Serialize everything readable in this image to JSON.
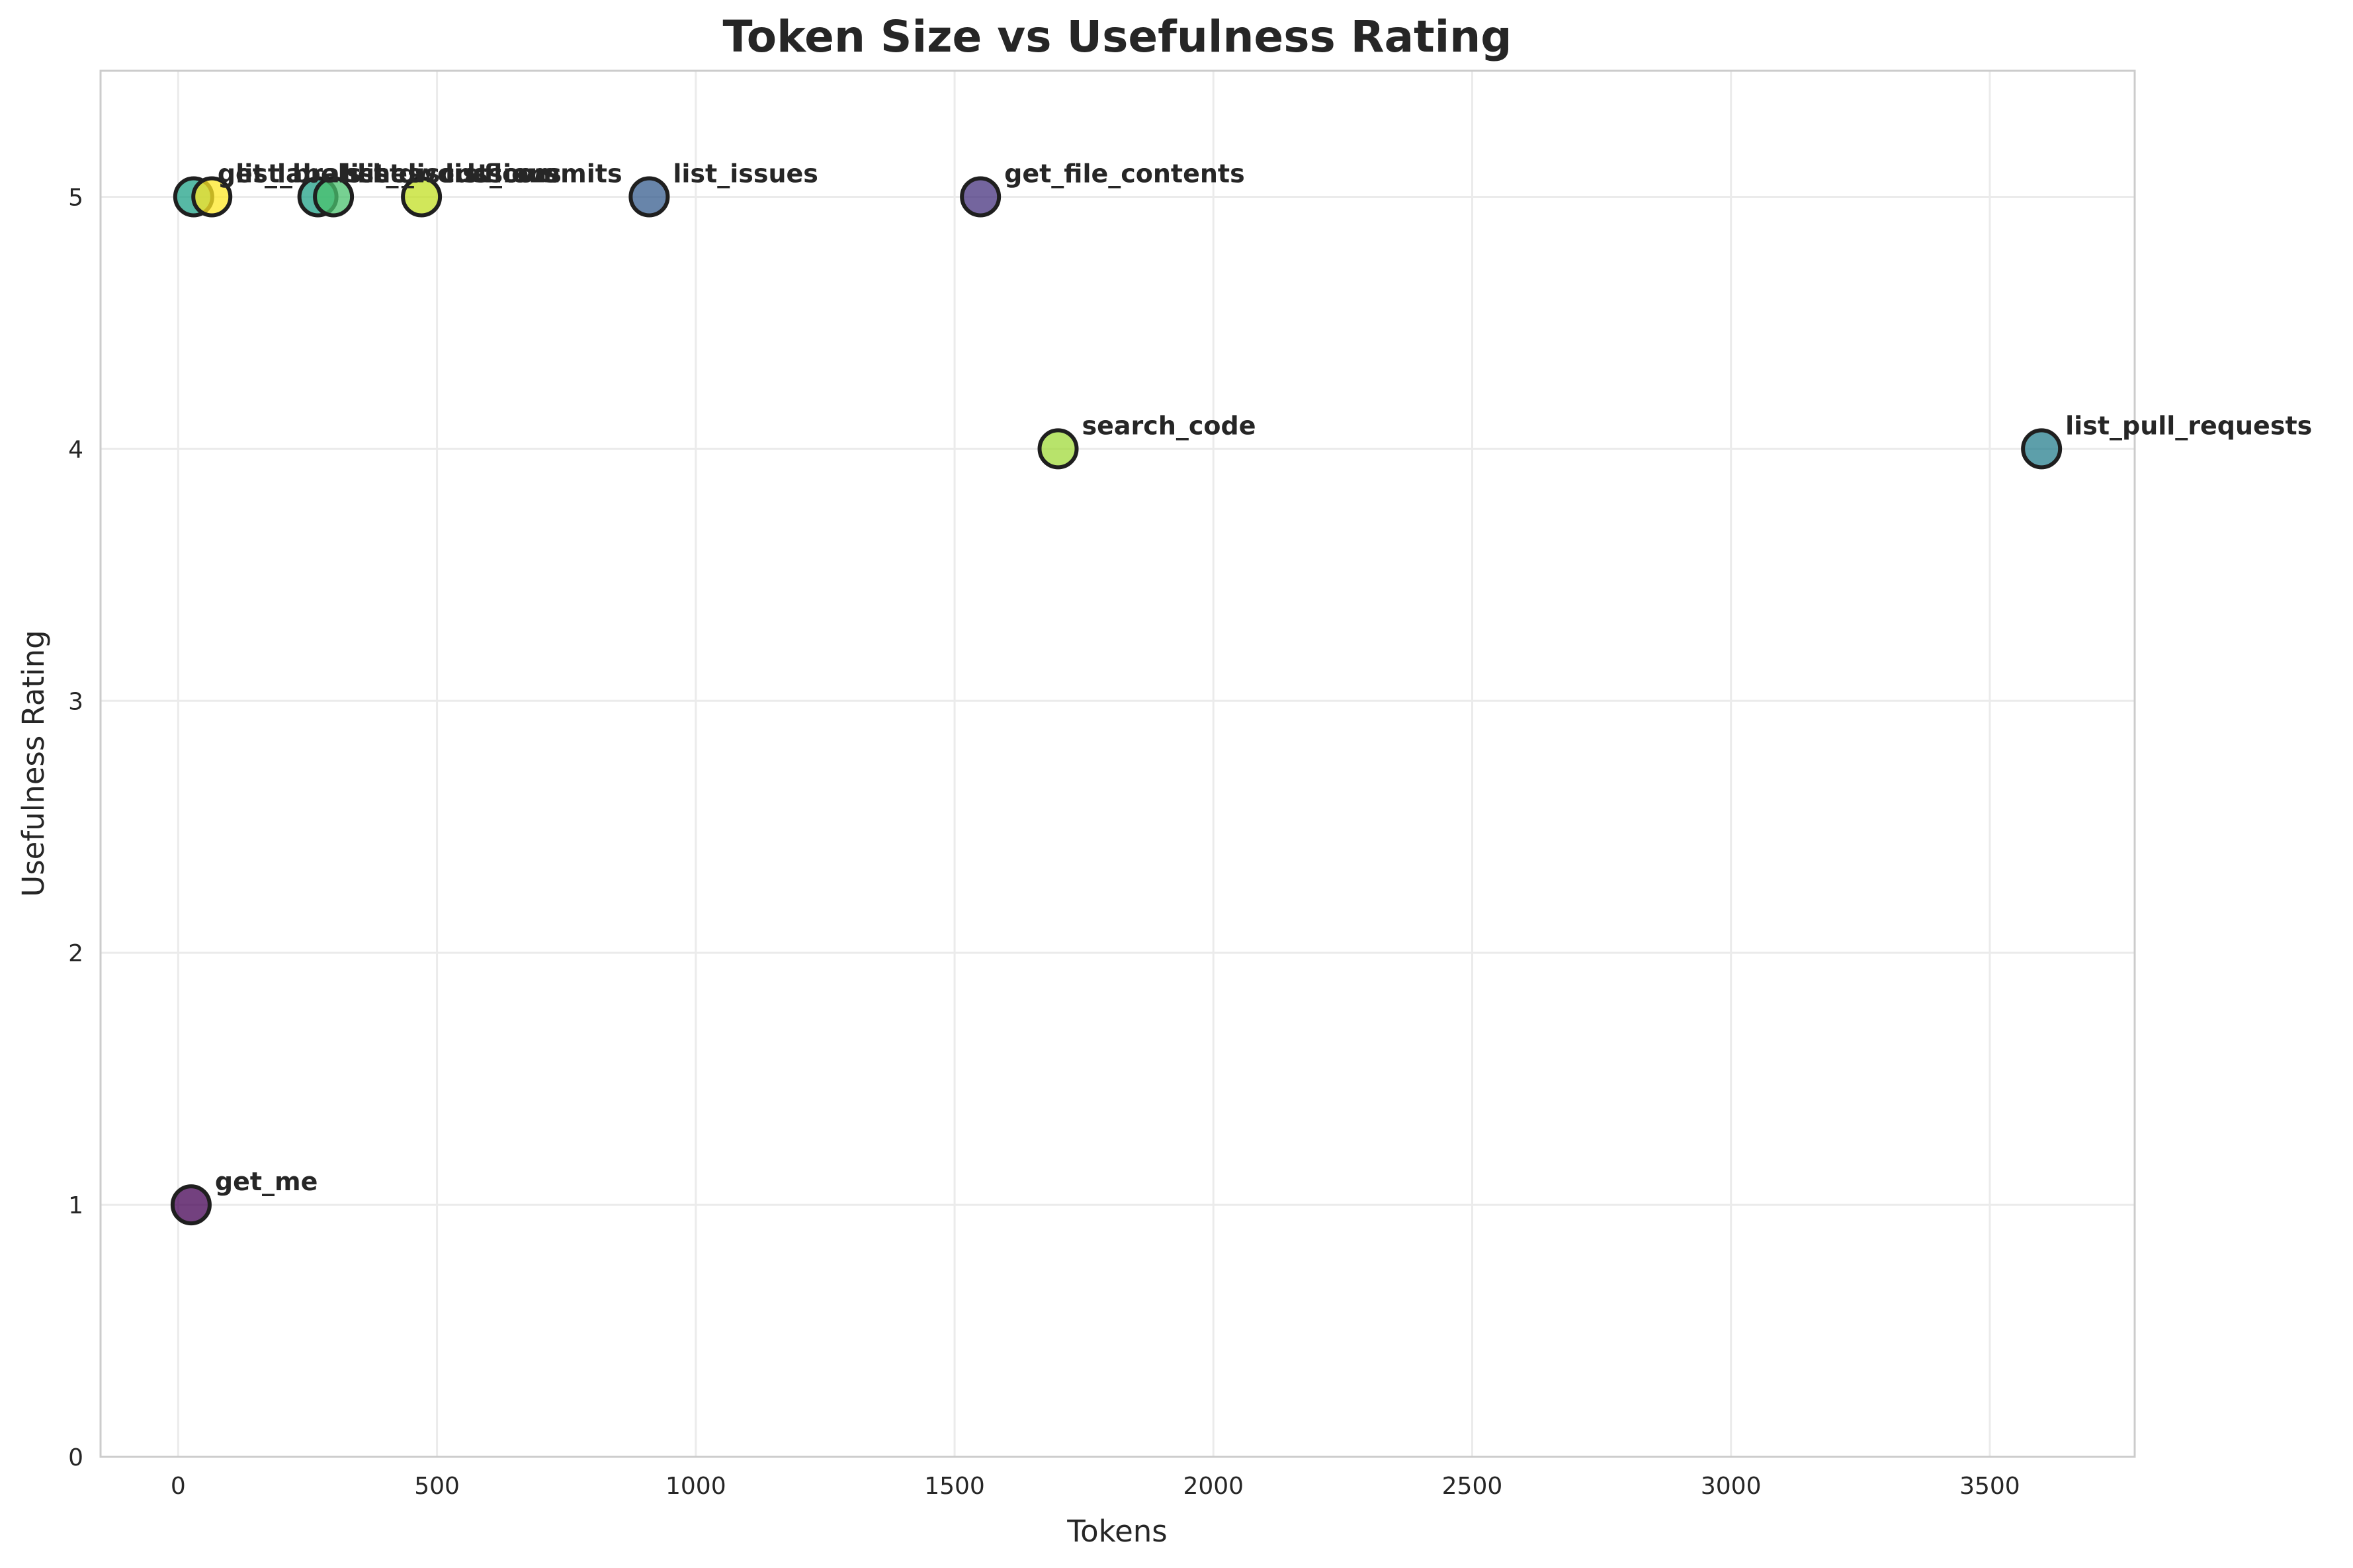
{
  "chart_data": {
    "type": "scatter",
    "title": "Token Size vs Usefulness Rating",
    "xlabel": "Tokens",
    "ylabel": "Usefulness Rating",
    "xlim": [
      -150,
      3780
    ],
    "ylim": [
      0,
      5.5
    ],
    "xticks": [
      0,
      500,
      1000,
      1500,
      2000,
      2500,
      3000,
      3500
    ],
    "yticks": [
      0,
      1,
      2,
      3,
      4,
      5
    ],
    "grid": true,
    "points": [
      {
        "label": "get_me",
        "x": 25,
        "y": 1,
        "color": "#440154"
      },
      {
        "label": "get_file_contents",
        "x": 1550,
        "y": 5,
        "color": "#46327e"
      },
      {
        "label": "list_issues",
        "x": 910,
        "y": 5,
        "color": "#365c8d"
      },
      {
        "label": "list_pull_requests",
        "x": 3600,
        "y": 4,
        "color": "#277f8e"
      },
      {
        "label": "list_discussions",
        "x": 270,
        "y": 5,
        "color": "#1fa187"
      },
      {
        "label": "list_workflows",
        "x": 300,
        "y": 5,
        "color": "#4ac16d"
      },
      {
        "label": "get_labels",
        "x": 30,
        "y": 5,
        "color": "#1fa187"
      },
      {
        "label": "search_code",
        "x": 1700,
        "y": 4,
        "color": "#a0da39"
      },
      {
        "label": "list_commits",
        "x": 470,
        "y": 5,
        "color": "#c2df23"
      },
      {
        "label": "list_branches",
        "x": 65,
        "y": 5,
        "color": "#fde725"
      }
    ]
  }
}
